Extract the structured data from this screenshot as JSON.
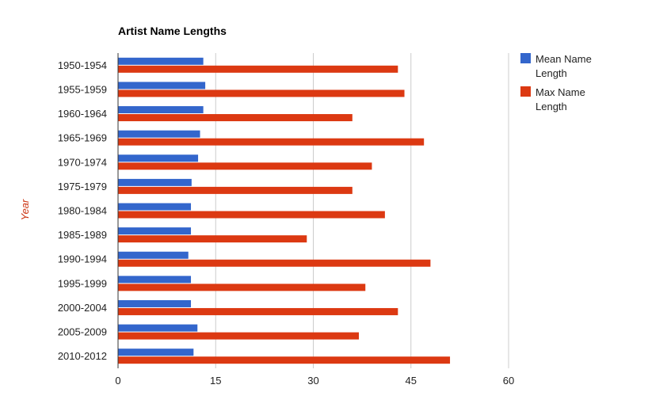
{
  "chart_data": {
    "type": "bar",
    "orientation": "horizontal",
    "title": "Artist Name Lengths",
    "ylabel": "Year",
    "xlabel": "",
    "categories": [
      "1950-1954",
      "1955-1959",
      "1960-1964",
      "1965-1969",
      "1970-1974",
      "1975-1979",
      "1980-1984",
      "1985-1989",
      "1990-1994",
      "1995-1999",
      "2000-2004",
      "2005-2009",
      "2010-2012"
    ],
    "series": [
      {
        "name": "Mean Name Length",
        "color": "#3366cc",
        "values": [
          13.1,
          13.4,
          13.1,
          12.6,
          12.3,
          11.3,
          11.2,
          11.2,
          10.8,
          11.2,
          11.2,
          12.2,
          11.6
        ]
      },
      {
        "name": "Max Name Length",
        "color": "#dc3912",
        "values": [
          43,
          44,
          36,
          47,
          39,
          36,
          41,
          29,
          48,
          38,
          43,
          37,
          51
        ]
      }
    ],
    "xlim": [
      0,
      60
    ],
    "xticks": [
      0,
      15,
      30,
      45,
      60
    ],
    "grid": true,
    "legend": "right"
  }
}
